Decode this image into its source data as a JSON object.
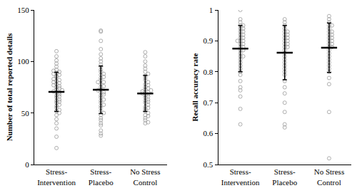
{
  "chart_data": [
    {
      "type": "scatter",
      "ylabel": "Number of total reported details",
      "categories": [
        "Stress-Intervention",
        "Stress-Placebo",
        "No Stress Control"
      ],
      "values": [
        [
          16,
          27,
          35,
          40,
          44,
          48,
          50,
          52,
          53,
          55,
          57,
          58,
          60,
          61,
          62,
          63,
          65,
          66,
          67,
          68,
          70,
          70,
          71,
          72,
          73,
          74,
          75,
          76,
          77,
          78,
          79,
          80,
          81,
          82,
          83,
          85,
          86,
          87,
          88,
          89,
          90,
          91,
          92,
          95,
          98,
          101,
          105,
          110
        ],
        [
          28,
          30,
          33,
          38,
          40,
          43,
          45,
          48,
          50,
          52,
          55,
          57,
          58,
          60,
          62,
          63,
          65,
          67,
          68,
          70,
          70,
          72,
          73,
          75,
          76,
          78,
          80,
          80,
          82,
          84,
          85,
          87,
          88,
          90,
          92,
          95,
          97,
          100,
          103,
          107,
          112,
          120,
          129,
          130
        ],
        [
          40,
          41,
          43,
          45,
          47,
          48,
          50,
          52,
          54,
          55,
          56,
          58,
          60,
          61,
          62,
          63,
          65,
          66,
          67,
          68,
          69,
          70,
          70,
          71,
          72,
          73,
          74,
          75,
          77,
          78,
          80,
          82,
          84,
          86,
          88,
          90,
          93,
          96,
          100,
          105,
          109
        ]
      ],
      "means": [
        70.5,
        72.5,
        69
      ],
      "sd": [
        19,
        23,
        17.5
      ],
      "ylim": [
        0,
        150
      ],
      "yticks": [
        0,
        50,
        100,
        150
      ],
      "marker": "circle-open",
      "color": "#9a9a9a",
      "grid": false
    },
    {
      "type": "scatter",
      "ylabel": "Recall accuracy rate",
      "categories": [
        "Stress-Intervention",
        "Stress-Placebo",
        "No Stress Control"
      ],
      "values": [
        [
          0.63,
          0.68,
          0.72,
          0.74,
          0.75,
          0.77,
          0.79,
          0.8,
          0.81,
          0.82,
          0.83,
          0.84,
          0.85,
          0.85,
          0.86,
          0.87,
          0.87,
          0.88,
          0.88,
          0.89,
          0.89,
          0.9,
          0.9,
          0.9,
          0.91,
          0.91,
          0.92,
          0.92,
          0.93,
          0.93,
          0.94,
          0.94,
          0.95,
          0.95,
          0.96,
          0.97,
          1.0
        ],
        [
          0.62,
          0.63,
          0.67,
          0.7,
          0.73,
          0.75,
          0.77,
          0.79,
          0.8,
          0.81,
          0.82,
          0.83,
          0.84,
          0.85,
          0.86,
          0.87,
          0.88,
          0.88,
          0.89,
          0.89,
          0.9,
          0.9,
          0.91,
          0.91,
          0.92,
          0.92,
          0.93,
          0.93,
          0.94,
          0.95,
          0.96,
          0.97
        ],
        [
          0.52,
          0.67,
          0.76,
          0.78,
          0.8,
          0.81,
          0.82,
          0.83,
          0.84,
          0.85,
          0.86,
          0.87,
          0.88,
          0.88,
          0.89,
          0.89,
          0.9,
          0.9,
          0.91,
          0.91,
          0.92,
          0.92,
          0.93,
          0.93,
          0.94,
          0.95,
          0.95,
          0.96,
          0.97,
          0.98
        ]
      ],
      "means": [
        0.875,
        0.862,
        0.878
      ],
      "sd": [
        0.075,
        0.088,
        0.08
      ],
      "ylim": [
        0.5,
        1
      ],
      "yticks": [
        0.5,
        0.6,
        0.7,
        0.8,
        0.9,
        1
      ],
      "marker": "circle-open",
      "color": "#9a9a9a",
      "grid": false
    }
  ]
}
